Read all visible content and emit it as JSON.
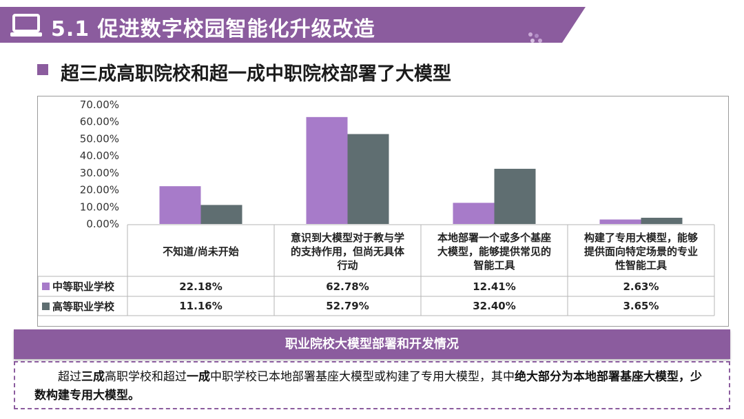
{
  "header": {
    "title": "5.1 促进数字校园智能化升级改造"
  },
  "subtitle": "超三成高职院校和超一成中职院校部署了大模型",
  "colors": {
    "accent": "#8b5c9e",
    "series_a": "#a77bc9",
    "series_b": "#5f6e71"
  },
  "chart_data": {
    "type": "bar",
    "categories": [
      "不知道/尚未开始",
      "意识到大模型对于教与学的支持作用，但尚无具体行动",
      "本地部署一个或多个基座大模型，能够提供常见的智能工具",
      "构建了专用大模型，能够提供面向特定场景的专业性智能工具"
    ],
    "category_lines": [
      [
        "不知道/尚未开始"
      ],
      [
        "意识到大模型对于教与学",
        "的支持作用，但尚无具体",
        "行动"
      ],
      [
        "本地部署一个或多个基座",
        "大模型，能够提供常见的",
        "智能工具"
      ],
      [
        "构建了专用大模型，能够",
        "提供面向特定场景的专业",
        "性智能工具"
      ]
    ],
    "series": [
      {
        "name": "中等职业学校",
        "values": [
          22.18,
          62.78,
          12.41,
          2.63
        ],
        "labels": [
          "22.18%",
          "62.78%",
          "12.41%",
          "2.63%"
        ]
      },
      {
        "name": "高等职业学校",
        "values": [
          11.16,
          52.79,
          32.4,
          3.65
        ],
        "labels": [
          "11.16%",
          "52.79%",
          "32.40%",
          "3.65%"
        ]
      }
    ],
    "yticks": [
      "0.00%",
      "10.00%",
      "20.00%",
      "30.00%",
      "40.00%",
      "50.00%",
      "60.00%",
      "70.00%"
    ],
    "ylim": [
      0,
      70
    ],
    "legend": "data-table"
  },
  "banner": "职业院校大模型部署和开发情况",
  "summary": {
    "parts": [
      {
        "text": "超过",
        "bold": false
      },
      {
        "text": "三成",
        "bold": true
      },
      {
        "text": "高职学校和超过",
        "bold": false
      },
      {
        "text": "一成",
        "bold": true
      },
      {
        "text": "中职学校已本地部署基座大模型或构建了专用大模型，其中",
        "bold": false
      },
      {
        "text": "绝大部分为本地部署基座大模型，少数构建专用大模型。",
        "bold": true
      }
    ]
  }
}
